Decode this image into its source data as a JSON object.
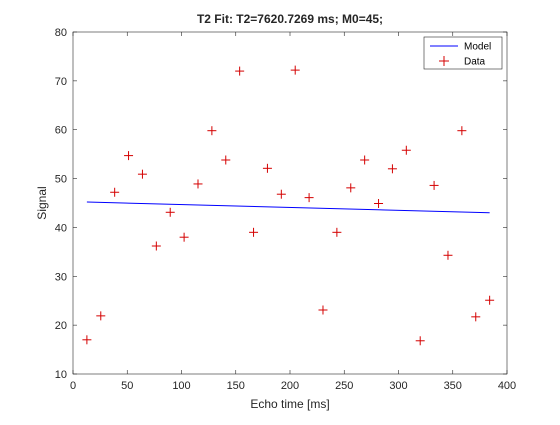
{
  "chart_data": {
    "type": "scatter",
    "title": "T2 Fit: T2=7620.7269 ms; M0=45;",
    "xlabel": "Echo time [ms]",
    "ylabel": "Signal",
    "xlim": [
      0,
      400
    ],
    "ylim": [
      10,
      80
    ],
    "xticks": [
      "0",
      "50",
      "100",
      "150",
      "200",
      "250",
      "300",
      "350",
      "400"
    ],
    "yticks": [
      "10",
      "20",
      "30",
      "40",
      "50",
      "60",
      "70",
      "80"
    ],
    "grid": false,
    "legend_position": "top-right",
    "series": [
      {
        "name": "Model",
        "type": "line",
        "color": "#0000ff",
        "x": [
          12.8,
          384
        ],
        "y": [
          45.2,
          43.0
        ]
      },
      {
        "name": "Data",
        "type": "scatter",
        "marker": "plus",
        "color": "#d40000",
        "x": [
          12.8,
          25.6,
          38.4,
          51.2,
          64,
          76.8,
          89.6,
          102.4,
          115.2,
          128,
          140.8,
          153.6,
          166.4,
          179.2,
          192,
          204.8,
          217.6,
          230.4,
          243.2,
          256,
          268.8,
          281.6,
          294.4,
          307.2,
          320,
          332.8,
          345.6,
          358.4,
          371.2,
          384
        ],
        "y": [
          17.0,
          21.9,
          47.2,
          54.7,
          50.9,
          36.2,
          43.1,
          38.0,
          48.9,
          59.8,
          53.8,
          72.0,
          39.0,
          52.1,
          46.8,
          72.2,
          46.1,
          23.1,
          39.0,
          48.1,
          53.8,
          44.9,
          52.0,
          55.8,
          16.8,
          48.6,
          34.3,
          59.8,
          21.7,
          25.1
        ]
      }
    ]
  }
}
